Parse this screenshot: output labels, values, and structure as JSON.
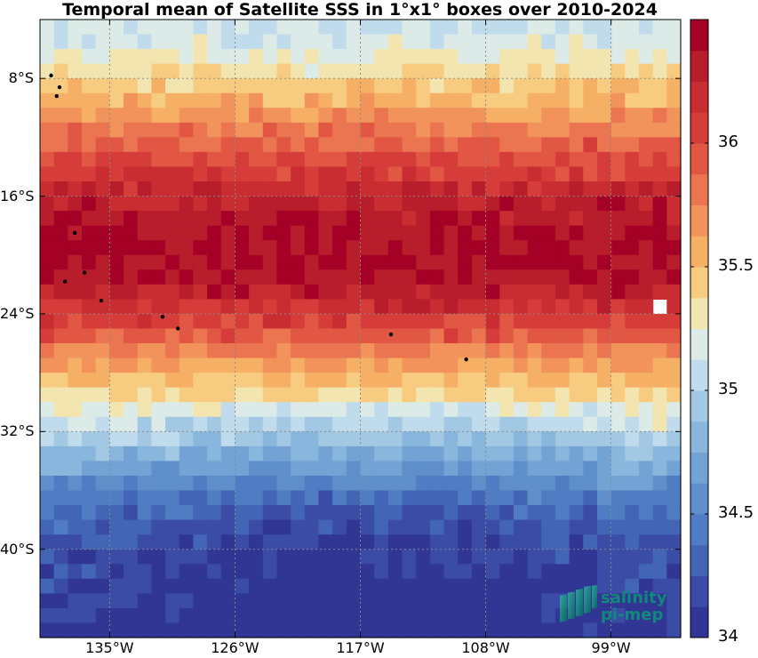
{
  "title": "Temporal mean of Satellite SSS in 1°x1° boxes over 2010-2024",
  "logo": {
    "line1": "salinity",
    "line2": "pi-mep"
  },
  "colors": {
    "map_background": "#ffffff",
    "grid": "#8a8a8a",
    "land": "#000000",
    "logo_text": "#0f8a7a"
  },
  "chart_data": {
    "type": "heatmap",
    "title": "Temporal mean of Satellite SSS in 1°x1° boxes over 2010-2024",
    "x_ticks": [
      {
        "value": -135,
        "label": "135°W"
      },
      {
        "value": -126,
        "label": "126°W"
      },
      {
        "value": -117,
        "label": "117°W"
      },
      {
        "value": -108,
        "label": "108°W"
      },
      {
        "value": -99,
        "label": "99°W"
      }
    ],
    "y_ticks": [
      {
        "value": -8,
        "label": "8°S"
      },
      {
        "value": -16,
        "label": "16°S"
      },
      {
        "value": -24,
        "label": "24°S"
      },
      {
        "value": -32,
        "label": "32°S"
      },
      {
        "value": -40,
        "label": "40°S"
      }
    ],
    "lon_range": [
      -140,
      -94
    ],
    "lat_range": [
      -46,
      -4
    ],
    "colorbar": {
      "min": 34.0,
      "max": 36.5,
      "ticks": [
        34,
        34.5,
        35,
        35.5,
        36
      ],
      "tick_labels": [
        "34",
        "34.5",
        "35",
        "35.5",
        "36"
      ],
      "colors": [
        "#313695",
        "#3a4ca6",
        "#4365b5",
        "#4f7cc2",
        "#5f8fcb",
        "#72a3d4",
        "#88b6dc",
        "#a2c8e3",
        "#c0dbeb",
        "#dcebe7",
        "#f2e5b0",
        "#f8cc80",
        "#f6b066",
        "#f1935a",
        "#ea7550",
        "#e15744",
        "#d63c39",
        "#c92c31",
        "#b81d2c",
        "#a50026"
      ]
    },
    "grid": true,
    "profile_lat": [
      -4,
      -6,
      -8,
      -10,
      -12,
      -14,
      -16,
      -18,
      -20,
      -22,
      -24,
      -26,
      -28,
      -30,
      -32,
      -34,
      -36,
      -38,
      -40,
      -42,
      -44,
      -46
    ],
    "profile_sss": [
      35.1,
      35.2,
      35.4,
      35.6,
      35.85,
      36.05,
      36.25,
      36.35,
      36.4,
      36.35,
      36.1,
      35.85,
      35.55,
      35.35,
      35.1,
      34.8,
      34.55,
      34.35,
      34.25,
      34.2,
      34.15,
      34.1
    ],
    "missing_cells": [
      {
        "lon": -95.5,
        "lat": -23.5
      }
    ],
    "islands": [
      {
        "lon": -139.2,
        "lat": -7.8
      },
      {
        "lon": -138.6,
        "lat": -8.6
      },
      {
        "lon": -138.8,
        "lat": -9.2
      },
      {
        "lon": -137.5,
        "lat": -18.5
      },
      {
        "lon": -138.2,
        "lat": -21.8
      },
      {
        "lon": -136.8,
        "lat": -21.2
      },
      {
        "lon": -135.6,
        "lat": -23.1
      },
      {
        "lon": -131.2,
        "lat": -24.2
      },
      {
        "lon": -130.1,
        "lat": -25.0
      },
      {
        "lon": -114.8,
        "lat": -25.4
      },
      {
        "lon": -109.4,
        "lat": -27.1
      }
    ]
  }
}
